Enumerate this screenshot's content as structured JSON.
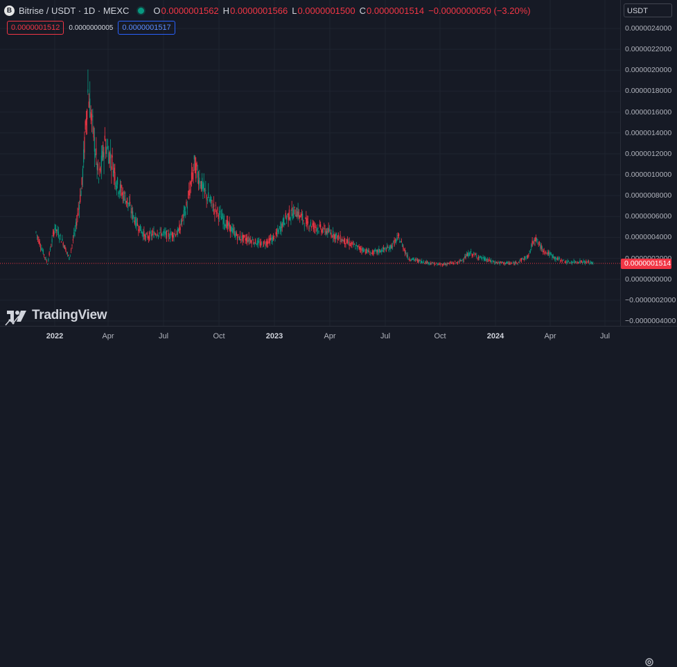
{
  "header": {
    "coin_letter": "B",
    "symbol": "Bitrise / USDT · 1D · MEXC",
    "ohlc": [
      {
        "key": "O",
        "value": "0.0000001562"
      },
      {
        "key": "H",
        "value": "0.0000001566"
      },
      {
        "key": "L",
        "value": "0.0000001500"
      },
      {
        "key": "C",
        "value": "0.0000001514"
      }
    ],
    "change": "−0.0000000050 (−3.20%)"
  },
  "order_panel": {
    "sell_price": "0.0000001512",
    "spread": "0.0000000005",
    "buy_price": "0.0000001517"
  },
  "price_scale": {
    "currency": "USDT",
    "labels": [
      "0.0000024000",
      "0.0000022000",
      "0.0000020000",
      "0.0000018000",
      "0.0000016000",
      "0.0000014000",
      "0.0000012000",
      "0.0000010000",
      "0.0000008000",
      "0.0000006000",
      "0.0000004000",
      "0.0000002000",
      "0.0000000000",
      "−0.0000002000",
      "−0.0000004000"
    ],
    "last_price": "0.0000001514"
  },
  "time_axis": {
    "labels": [
      {
        "text": "2022",
        "year": true
      },
      {
        "text": "Apr",
        "year": false
      },
      {
        "text": "Jul",
        "year": false
      },
      {
        "text": "Oct",
        "year": false
      },
      {
        "text": "2023",
        "year": true
      },
      {
        "text": "Apr",
        "year": false
      },
      {
        "text": "Jul",
        "year": false
      },
      {
        "text": "Oct",
        "year": false
      },
      {
        "text": "2024",
        "year": true
      },
      {
        "text": "Apr",
        "year": false
      },
      {
        "text": "Jul",
        "year": false
      }
    ]
  },
  "watermark": {
    "text": "TradingView"
  },
  "colors": {
    "up": "#089981",
    "down": "#f23645",
    "background": "#161a25",
    "grid": "#1f2430"
  },
  "chart_data": {
    "type": "candlestick",
    "x_axis": "date",
    "y_unit": "USDT",
    "ylim": [
      -4.5e-07,
      2.5e-06
    ],
    "grid": true,
    "last_price": 1.514e-07,
    "close_series": [
      {
        "date": "2021-12-01",
        "close": 4.5e-07
      },
      {
        "date": "2021-12-10",
        "close": 3e-07
      },
      {
        "date": "2021-12-20",
        "close": 1.5e-07
      },
      {
        "date": "2022-01-01",
        "close": 5e-07
      },
      {
        "date": "2022-01-15",
        "close": 3.5e-07
      },
      {
        "date": "2022-01-25",
        "close": 2e-07
      },
      {
        "date": "2022-02-05",
        "close": 5e-07
      },
      {
        "date": "2022-02-15",
        "close": 9e-07
      },
      {
        "date": "2022-02-25",
        "close": 1.8e-06
      },
      {
        "date": "2022-03-05",
        "close": 1.45e-06
      },
      {
        "date": "2022-03-15",
        "close": 9.5e-07
      },
      {
        "date": "2022-03-25",
        "close": 1.3e-06
      },
      {
        "date": "2022-04-05",
        "close": 1.15e-06
      },
      {
        "date": "2022-04-15",
        "close": 9e-07
      },
      {
        "date": "2022-05-01",
        "close": 7.5e-07
      },
      {
        "date": "2022-05-15",
        "close": 5.5e-07
      },
      {
        "date": "2022-06-01",
        "close": 4e-07
      },
      {
        "date": "2022-06-20",
        "close": 4.5e-07
      },
      {
        "date": "2022-07-10",
        "close": 4.2e-07
      },
      {
        "date": "2022-07-25",
        "close": 4.5e-07
      },
      {
        "date": "2022-08-10",
        "close": 7.5e-07
      },
      {
        "date": "2022-08-20",
        "close": 1.1e-06
      },
      {
        "date": "2022-09-05",
        "close": 8.5e-07
      },
      {
        "date": "2022-09-20",
        "close": 7e-07
      },
      {
        "date": "2022-10-10",
        "close": 5.5e-07
      },
      {
        "date": "2022-11-01",
        "close": 4e-07
      },
      {
        "date": "2022-11-20",
        "close": 3.8e-07
      },
      {
        "date": "2022-12-10",
        "close": 3.3e-07
      },
      {
        "date": "2023-01-01",
        "close": 4e-07
      },
      {
        "date": "2023-01-20",
        "close": 6e-07
      },
      {
        "date": "2023-02-05",
        "close": 6.5e-07
      },
      {
        "date": "2023-02-20",
        "close": 5.5e-07
      },
      {
        "date": "2023-03-10",
        "close": 5e-07
      },
      {
        "date": "2023-04-01",
        "close": 4.5e-07
      },
      {
        "date": "2023-05-01",
        "close": 3.5e-07
      },
      {
        "date": "2023-05-20",
        "close": 3e-07
      },
      {
        "date": "2023-06-10",
        "close": 2.5e-07
      },
      {
        "date": "2023-07-10",
        "close": 3e-07
      },
      {
        "date": "2023-07-25",
        "close": 4e-07
      },
      {
        "date": "2023-08-10",
        "close": 2e-07
      },
      {
        "date": "2023-09-01",
        "close": 1.7e-07
      },
      {
        "date": "2023-10-01",
        "close": 1.4e-07
      },
      {
        "date": "2023-11-01",
        "close": 1.6e-07
      },
      {
        "date": "2023-11-20",
        "close": 2.5e-07
      },
      {
        "date": "2023-12-10",
        "close": 2e-07
      },
      {
        "date": "2024-01-01",
        "close": 1.6e-07
      },
      {
        "date": "2024-02-01",
        "close": 1.5e-07
      },
      {
        "date": "2024-02-25",
        "close": 2.2e-07
      },
      {
        "date": "2024-03-05",
        "close": 4e-07
      },
      {
        "date": "2024-03-20",
        "close": 2.8e-07
      },
      {
        "date": "2024-04-10",
        "close": 2e-07
      },
      {
        "date": "2024-05-01",
        "close": 1.6e-07
      },
      {
        "date": "2024-05-20",
        "close": 1.7e-07
      },
      {
        "date": "2024-06-05",
        "close": 1.6e-07
      },
      {
        "date": "2024-06-12",
        "close": 1.5e-07
      }
    ]
  }
}
